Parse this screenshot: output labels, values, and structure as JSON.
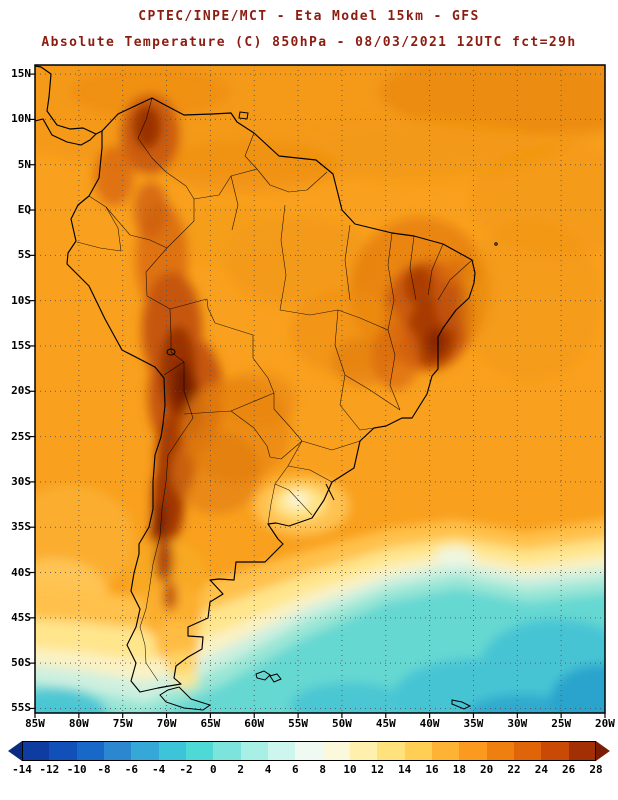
{
  "title": {
    "line1": "CPTEC/INPE/MCT -  Eta Model 15km - GFS",
    "line2": "Absolute Temperature (C) 850hPa - 08/03/2021 12UTC fct=29h",
    "color": "#8b1c10"
  },
  "map": {
    "lat_labels": [
      "15N",
      "10N",
      "5N",
      "EQ",
      "5S",
      "10S",
      "15S",
      "20S",
      "25S",
      "30S",
      "35S",
      "40S",
      "45S",
      "50S",
      "55S"
    ],
    "lon_labels": [
      "85W",
      "80W",
      "75W",
      "70W",
      "65W",
      "60W",
      "55W",
      "50W",
      "45W",
      "40W",
      "35W",
      "30W",
      "25W",
      "20W"
    ]
  },
  "colorbar": {
    "units": "C",
    "tick_labels": [
      "-14",
      "-12",
      "-10",
      "-8",
      "-6",
      "-4",
      "-2",
      "0",
      "2",
      "4",
      "6",
      "8",
      "10",
      "12",
      "14",
      "16",
      "18",
      "20",
      "22",
      "24",
      "26",
      "28"
    ],
    "colors": [
      "#0A2C80",
      "#0E3CA0",
      "#1150B8",
      "#1868C8",
      "#2B88D0",
      "#35A8D8",
      "#3EC4D8",
      "#4ED8D6",
      "#7CE4DC",
      "#A8EFE6",
      "#CDF6EE",
      "#EFFBF2",
      "#FBF8DC",
      "#FFF0AE",
      "#FFE27C",
      "#FFCE55",
      "#FFB335",
      "#FB9A1E",
      "#EF8010",
      "#E06408",
      "#C84A05",
      "#A33004",
      "#7A1D03"
    ]
  },
  "chart_data": {
    "type": "heatmap",
    "title": "Absolute Temperature (C) 850hPa",
    "institution": "CPTEC/INPE/MCT",
    "model": "Eta Model 15km - GFS",
    "valid": "08/03/2021 12UTC fct=29h",
    "units": "C",
    "x_ticks": [
      "85W",
      "80W",
      "75W",
      "70W",
      "65W",
      "60W",
      "55W",
      "50W",
      "45W",
      "40W",
      "35W",
      "30W",
      "25W",
      "20W"
    ],
    "y_ticks": [
      "15N",
      "10N",
      "5N",
      "EQ",
      "5S",
      "10S",
      "15S",
      "20S",
      "25S",
      "30S",
      "35S",
      "40S",
      "45S",
      "50S",
      "55S"
    ],
    "levels": [
      -14,
      -12,
      -10,
      -8,
      -6,
      -4,
      -2,
      0,
      2,
      4,
      6,
      8,
      10,
      12,
      14,
      16,
      18,
      20,
      22,
      24,
      26,
      28
    ],
    "palette": [
      "#0A2C80",
      "#0E3CA0",
      "#1150B8",
      "#1868C8",
      "#2B88D0",
      "#35A8D8",
      "#3EC4D8",
      "#4ED8D6",
      "#7CE4DC",
      "#A8EFE6",
      "#CDF6EE",
      "#EFFBF2",
      "#FBF8DC",
      "#FFF0AE",
      "#FFE27C",
      "#FFCE55",
      "#FFB335",
      "#FB9A1E",
      "#EF8010",
      "#E06408",
      "#C84A05",
      "#A33004",
      "#7A1D03"
    ],
    "field_summary": [
      "Orange shades (16-22C) cover most of tropical South America and the adjacent tropical oceans",
      "Hot cores above 24C run along the Andes from Peru/Bolivia down to central Chile-Argentina and over interior Northeast Brazil",
      "A cooler yellow pocket (10-14C) sits over Uruguay and the adjacent coast",
      "Yellow-to-pale band (6-14C) sweeps northeastward over the South Atlantic near 35-45S",
      "Cyan air (0-6C) fills the far South Atlantic and Southern Ocean below about 45S",
      "Coldest shades near -2 to -6C appear in the southeastern corner of the domain"
    ]
  }
}
